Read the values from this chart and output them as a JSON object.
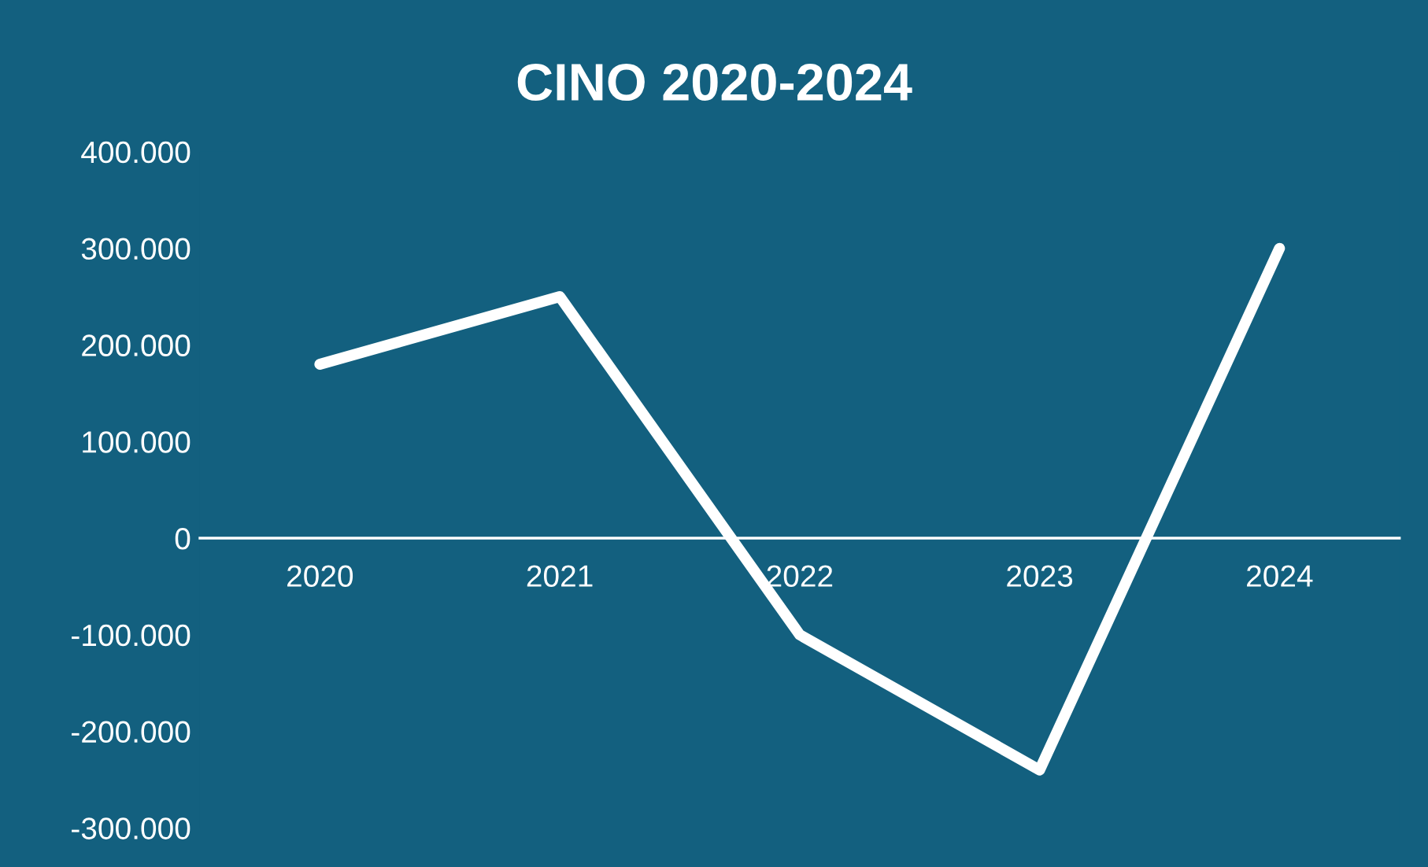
{
  "chart_data": {
    "type": "line",
    "title": "CINO 2020-2024",
    "categories": [
      "2020",
      "2021",
      "2022",
      "2023",
      "2024"
    ],
    "series": [
      {
        "color": "#ffffff",
        "values": [
          180000,
          250000,
          -100000,
          -240000,
          300000
        ]
      }
    ],
    "ylim": [
      -300000,
      400000
    ],
    "yticks": [
      {
        "value": -300000,
        "label": "-300.000"
      },
      {
        "value": -200000,
        "label": "-200.000"
      },
      {
        "value": -100000,
        "label": "-100.000"
      },
      {
        "value": 0,
        "label": "0"
      },
      {
        "value": 100000,
        "label": "100.000"
      },
      {
        "value": 200000,
        "label": "200.000"
      },
      {
        "value": 300000,
        "label": "300.000"
      },
      {
        "value": 400000,
        "label": "400.000"
      }
    ],
    "grid": false,
    "legend": false,
    "marker": "none",
    "line_style": "solid"
  }
}
